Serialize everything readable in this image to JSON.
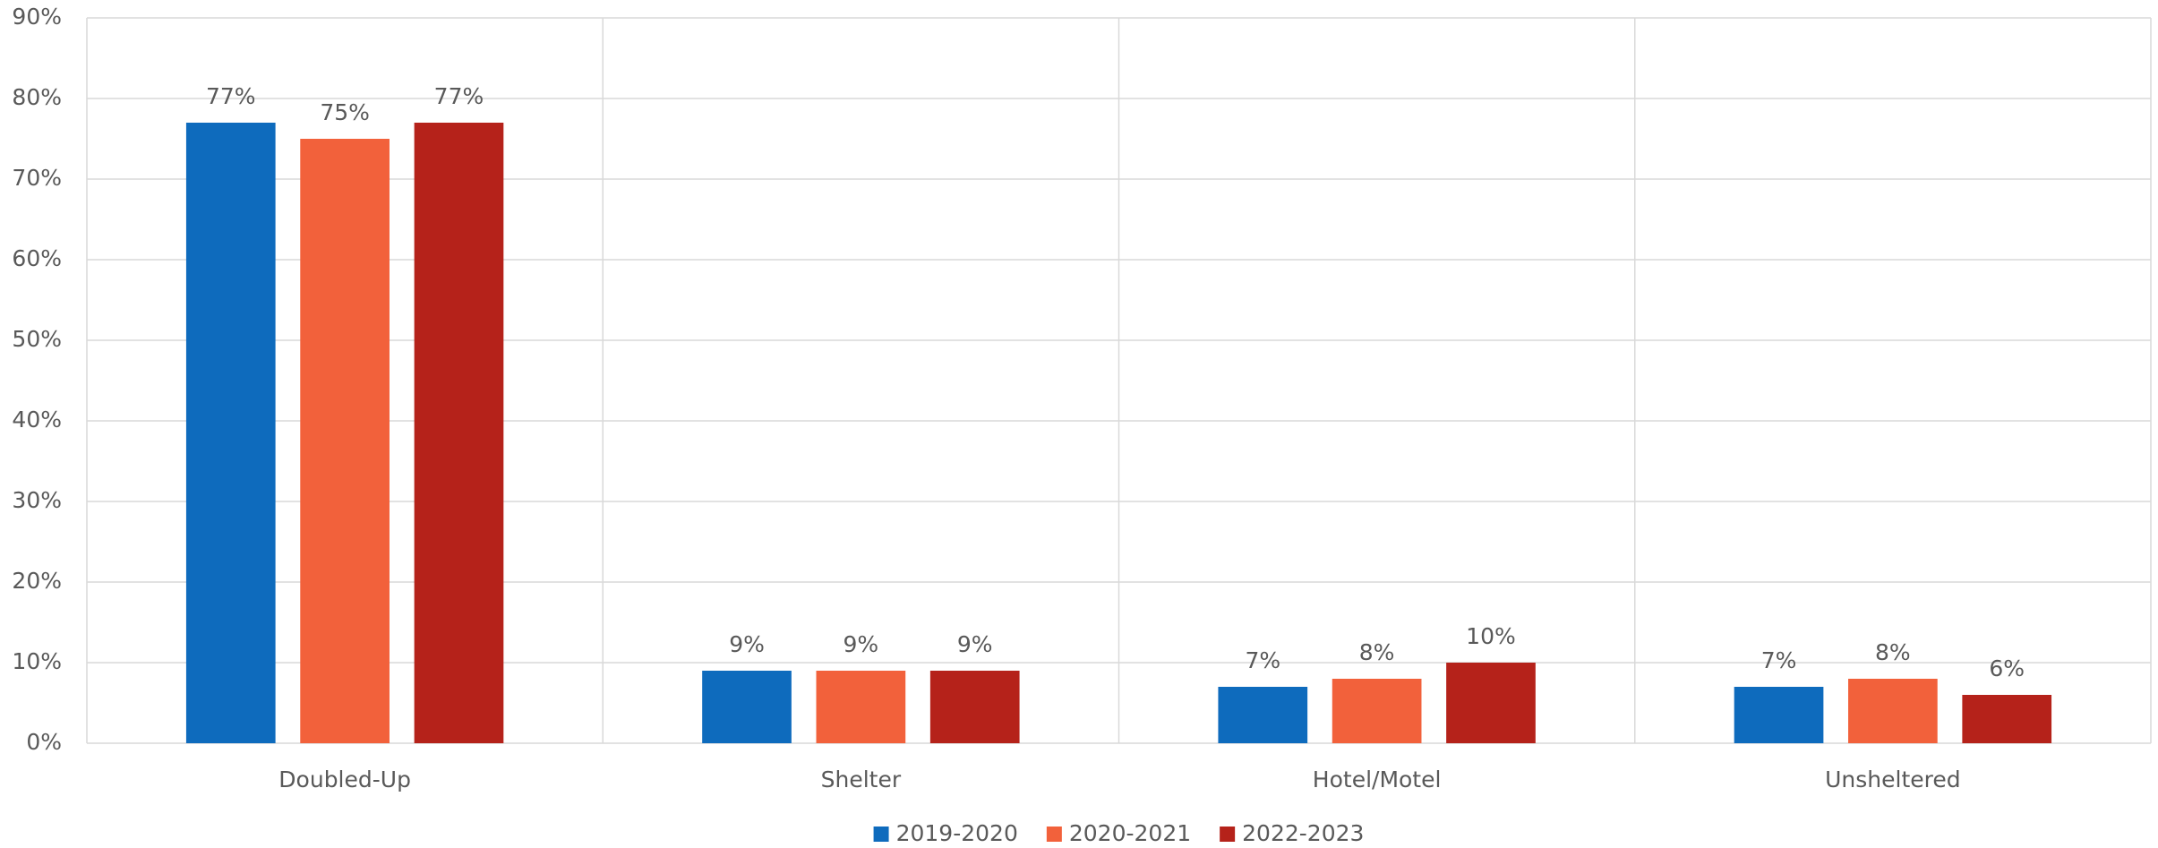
{
  "chart_data": {
    "type": "bar",
    "categories": [
      "Doubled-Up",
      "Shelter",
      "Hotel/Motel",
      "Unsheltered"
    ],
    "series": [
      {
        "name": "2019-2020",
        "color": "#0e6bbd",
        "values": [
          77,
          9,
          7,
          7
        ],
        "value_labels": [
          "77%",
          "9%",
          "7%",
          "7%"
        ]
      },
      {
        "name": "2020-2021",
        "color": "#f2613b",
        "values": [
          75,
          9,
          8,
          8
        ],
        "value_labels": [
          "75%",
          "9%",
          "8%",
          "8%"
        ]
      },
      {
        "name": "2022-2023",
        "color": "#b5221a",
        "values": [
          77,
          9,
          10,
          6
        ],
        "value_labels": [
          "77%",
          "9%",
          "10%",
          "6%"
        ]
      }
    ],
    "ylim": [
      0,
      90
    ],
    "yticks": [
      {
        "value": 0,
        "label": "0%"
      },
      {
        "value": 10,
        "label": "10%"
      },
      {
        "value": 20,
        "label": "20%"
      },
      {
        "value": 30,
        "label": "30%"
      },
      {
        "value": 40,
        "label": "40%"
      },
      {
        "value": 50,
        "label": "50%"
      },
      {
        "value": 60,
        "label": "60%"
      },
      {
        "value": 70,
        "label": "70%"
      },
      {
        "value": 80,
        "label": "80%"
      },
      {
        "value": 90,
        "label": "90%"
      }
    ],
    "grid": true,
    "legend": "bottom"
  }
}
